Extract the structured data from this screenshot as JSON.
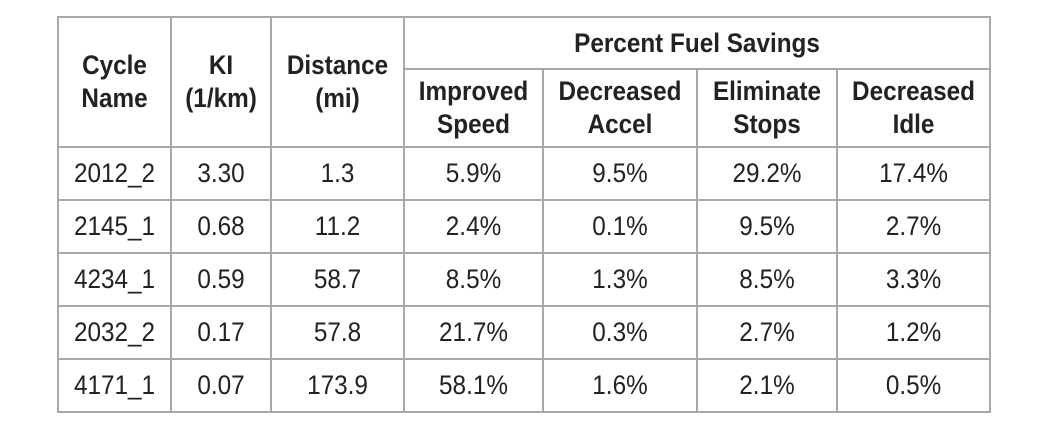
{
  "table": {
    "headers": {
      "cycle_name": [
        "Cycle",
        "Name"
      ],
      "ki": [
        "KI",
        "(1/km)"
      ],
      "distance": [
        "Distance",
        "(mi)"
      ],
      "group": "Percent Fuel Savings",
      "improved_speed": [
        "Improved",
        "Speed"
      ],
      "decreased_accel": [
        "Decreased",
        "Accel"
      ],
      "eliminate_stops": [
        "Eliminate",
        "Stops"
      ],
      "decreased_idle": [
        "Decreased",
        "Idle"
      ]
    },
    "rows": [
      [
        "2012_2",
        "3.30",
        "1.3",
        "5.9%",
        "9.5%",
        "29.2%",
        "17.4%"
      ],
      [
        "2145_1",
        "0.68",
        "11.2",
        "2.4%",
        "0.1%",
        "9.5%",
        "2.7%"
      ],
      [
        "4234_1",
        "0.59",
        "58.7",
        "8.5%",
        "1.3%",
        "8.5%",
        "3.3%"
      ],
      [
        "2032_2",
        "0.17",
        "57.8",
        "21.7%",
        "0.3%",
        "2.7%",
        "1.2%"
      ],
      [
        "4171_1",
        "0.07",
        "173.9",
        "58.1%",
        "1.6%",
        "2.1%",
        "0.5%"
      ]
    ]
  }
}
